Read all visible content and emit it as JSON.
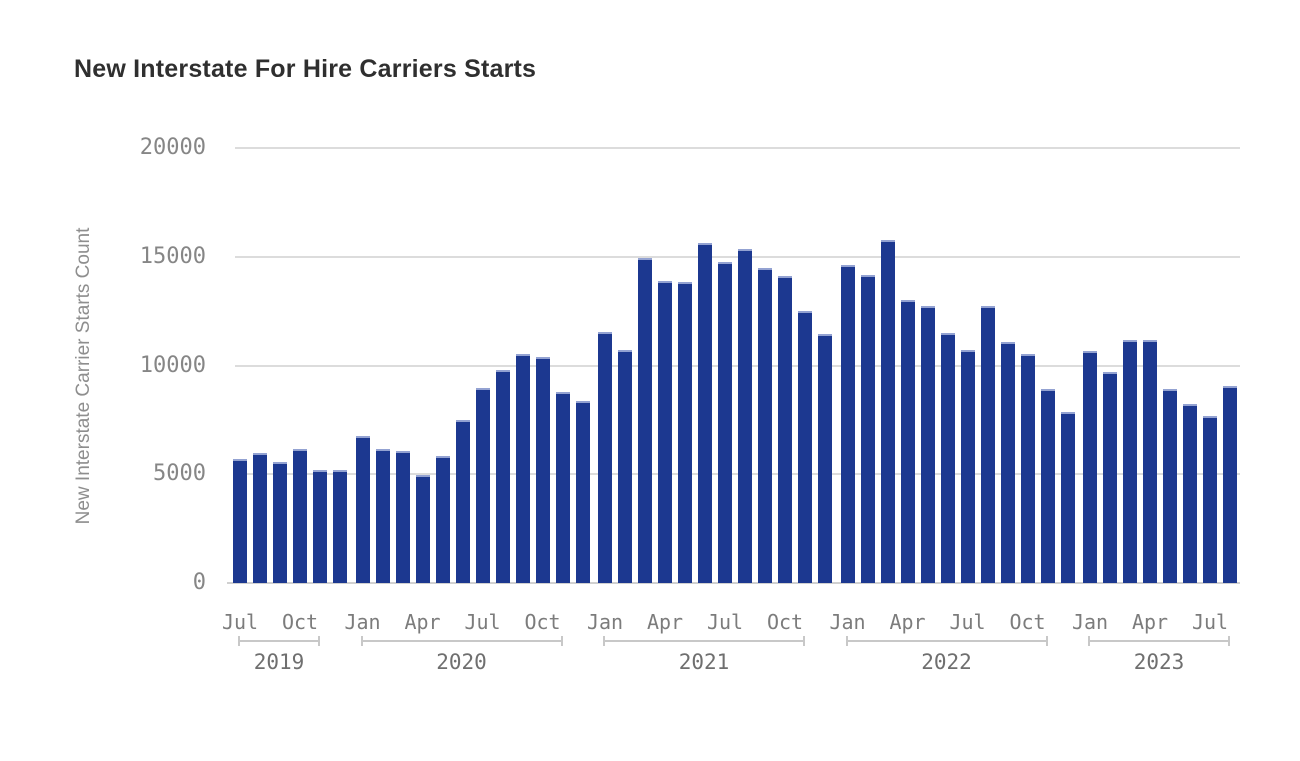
{
  "title": "New Interstate For Hire Carriers Starts",
  "chart_data": {
    "type": "bar",
    "title": "New Interstate For Hire Carriers Starts",
    "xlabel": "",
    "ylabel": "New Interstate Carrier Starts Count",
    "ylim": [
      0,
      20000
    ],
    "yticks": [
      0,
      5000,
      10000,
      15000,
      20000
    ],
    "grid": true,
    "legend_position": "none",
    "bar_color": "#1c3890",
    "groups": [
      {
        "year": "2019",
        "months": [
          "Jul",
          "Aug",
          "Sep",
          "Oct",
          "Nov",
          "Dec"
        ],
        "values": [
          5700,
          6000,
          5550,
          6150,
          5200,
          5200
        ],
        "ticks": [
          {
            "label": "Jul",
            "month_index": 0
          },
          {
            "label": "Oct",
            "month_index": 3
          }
        ]
      },
      {
        "year": "2020",
        "months": [
          "Jan",
          "Feb",
          "Mar",
          "Apr",
          "May",
          "Jun",
          "Jul",
          "Aug",
          "Sep",
          "Oct",
          "Nov",
          "Dec"
        ],
        "values": [
          6750,
          6150,
          6050,
          4950,
          5850,
          7500,
          8950,
          9800,
          10550,
          10400,
          8800,
          8350
        ],
        "ticks": [
          {
            "label": "Jan",
            "month_index": 0
          },
          {
            "label": "Apr",
            "month_index": 3
          },
          {
            "label": "Jul",
            "month_index": 6
          },
          {
            "label": "Oct",
            "month_index": 9
          }
        ]
      },
      {
        "year": "2021",
        "months": [
          "Jan",
          "Feb",
          "Mar",
          "Apr",
          "May",
          "Jun",
          "Jul",
          "Aug",
          "Sep",
          "Oct",
          "Nov",
          "Dec"
        ],
        "values": [
          11550,
          10700,
          14950,
          13900,
          13850,
          15650,
          14750,
          15350,
          14500,
          14100,
          12500,
          11450
        ],
        "ticks": [
          {
            "label": "Jan",
            "month_index": 0
          },
          {
            "label": "Apr",
            "month_index": 3
          },
          {
            "label": "Jul",
            "month_index": 6
          },
          {
            "label": "Oct",
            "month_index": 9
          }
        ]
      },
      {
        "year": "2022",
        "months": [
          "Jan",
          "Feb",
          "Mar",
          "Apr",
          "May",
          "Jun",
          "Jul",
          "Aug",
          "Sep",
          "Oct",
          "Nov",
          "Dec"
        ],
        "values": [
          14600,
          14150,
          15750,
          13000,
          12750,
          11500,
          10700,
          12750,
          11100,
          10550,
          8900,
          7850
        ],
        "ticks": [
          {
            "label": "Jan",
            "month_index": 0
          },
          {
            "label": "Apr",
            "month_index": 3
          },
          {
            "label": "Jul",
            "month_index": 6
          },
          {
            "label": "Oct",
            "month_index": 9
          }
        ]
      },
      {
        "year": "2023",
        "months": [
          "Jan",
          "Feb",
          "Mar",
          "Apr",
          "May",
          "Jun",
          "Jul",
          "Aug"
        ],
        "values": [
          10650,
          9700,
          11150,
          11150,
          8900,
          8250,
          7700,
          9050
        ],
        "ticks": [
          {
            "label": "Jan",
            "month_index": 0
          },
          {
            "label": "Apr",
            "month_index": 3
          },
          {
            "label": "Jul",
            "month_index": 6
          }
        ]
      }
    ]
  }
}
